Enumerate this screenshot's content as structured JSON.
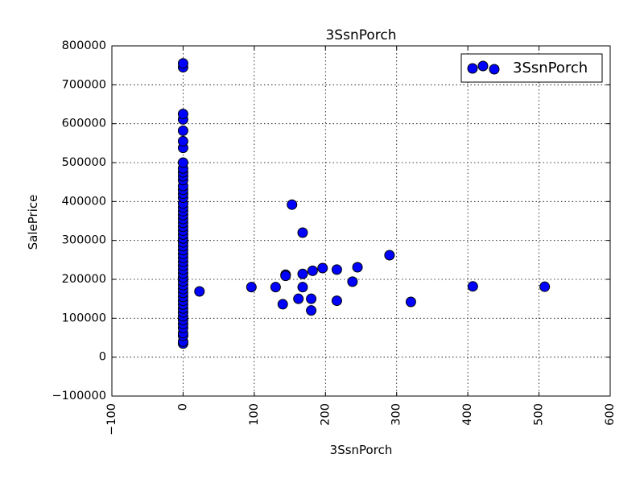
{
  "chart_data": {
    "type": "scatter",
    "title": "3SsnPorch",
    "xlabel": "3SsnPorch",
    "ylabel": "SalePrice",
    "xlim": [
      -100,
      600
    ],
    "ylim": [
      -100000,
      800000
    ],
    "x_ticks": [
      "−100",
      "0",
      "100",
      "200",
      "300",
      "400",
      "500",
      "600"
    ],
    "y_ticks": [
      "−100000",
      "0",
      "100000",
      "200000",
      "300000",
      "400000",
      "500000",
      "600000",
      "700000",
      "800000"
    ],
    "x_tick_values": [
      -100,
      0,
      100,
      200,
      300,
      400,
      500,
      600
    ],
    "y_tick_values": [
      -100000,
      0,
      100000,
      200000,
      300000,
      400000,
      500000,
      600000,
      700000,
      800000
    ],
    "grid": true,
    "legend_position": "top-right",
    "marker_color": "#0000ff",
    "series": [
      {
        "name": "3SsnPorch",
        "points": [
          [
            0,
            35000
          ],
          [
            0,
            40000
          ],
          [
            0,
            55000
          ],
          [
            0,
            62000
          ],
          [
            0,
            75000
          ],
          [
            0,
            85000
          ],
          [
            0,
            95000
          ],
          [
            0,
            105000
          ],
          [
            0,
            115000
          ],
          [
            0,
            125000
          ],
          [
            0,
            135000
          ],
          [
            0,
            145000
          ],
          [
            0,
            155000
          ],
          [
            0,
            165000
          ],
          [
            0,
            175000
          ],
          [
            0,
            185000
          ],
          [
            0,
            195000
          ],
          [
            0,
            205000
          ],
          [
            0,
            215000
          ],
          [
            0,
            225000
          ],
          [
            0,
            235000
          ],
          [
            0,
            245000
          ],
          [
            0,
            255000
          ],
          [
            0,
            265000
          ],
          [
            0,
            275000
          ],
          [
            0,
            285000
          ],
          [
            0,
            295000
          ],
          [
            0,
            305000
          ],
          [
            0,
            315000
          ],
          [
            0,
            325000
          ],
          [
            0,
            335000
          ],
          [
            0,
            345000
          ],
          [
            0,
            355000
          ],
          [
            0,
            365000
          ],
          [
            0,
            375000
          ],
          [
            0,
            385000
          ],
          [
            0,
            395000
          ],
          [
            0,
            410000
          ],
          [
            0,
            420000
          ],
          [
            0,
            430000
          ],
          [
            0,
            440000
          ],
          [
            0,
            455000
          ],
          [
            0,
            465000
          ],
          [
            0,
            475000
          ],
          [
            0,
            485000
          ],
          [
            0,
            500000
          ],
          [
            0,
            538000
          ],
          [
            0,
            555000
          ],
          [
            0,
            582000
          ],
          [
            0,
            611000
          ],
          [
            0,
            625000
          ],
          [
            0,
            745000
          ],
          [
            0,
            755000
          ],
          [
            23,
            169000
          ],
          [
            96,
            180000
          ],
          [
            130,
            180000
          ],
          [
            140,
            136000
          ],
          [
            144,
            212000
          ],
          [
            144,
            209000
          ],
          [
            153,
            392000
          ],
          [
            162,
            150000
          ],
          [
            168,
            320000
          ],
          [
            168,
            214000
          ],
          [
            168,
            180000
          ],
          [
            180,
            150000
          ],
          [
            180,
            120000
          ],
          [
            182,
            222000
          ],
          [
            196,
            229000
          ],
          [
            216,
            145000
          ],
          [
            216,
            225000
          ],
          [
            238,
            194000
          ],
          [
            245,
            231000
          ],
          [
            290,
            262000
          ],
          [
            320,
            142000
          ],
          [
            407,
            182000
          ],
          [
            508,
            181000
          ]
        ]
      }
    ]
  }
}
